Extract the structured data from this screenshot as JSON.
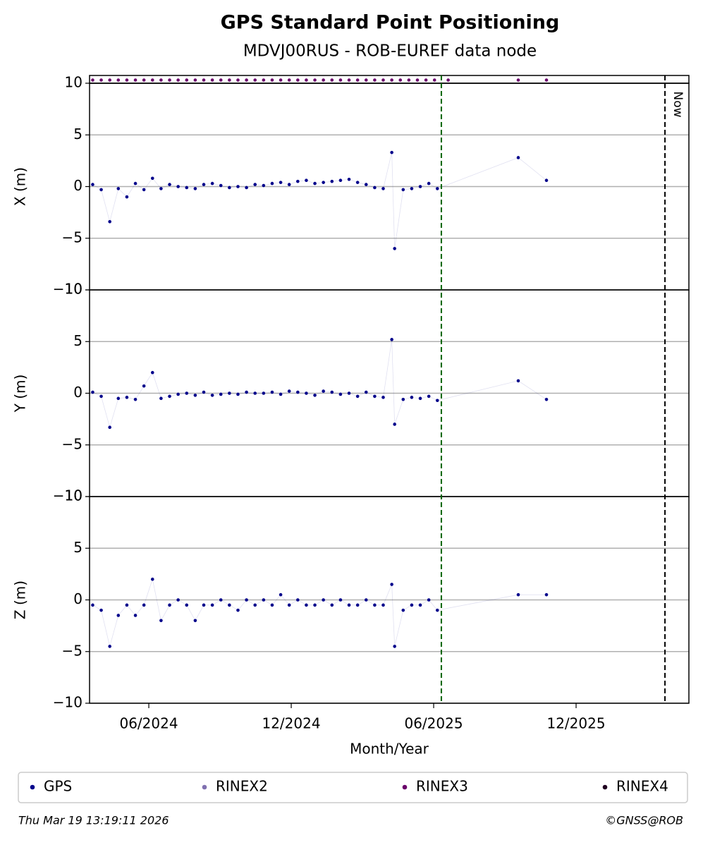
{
  "header": {
    "title": "GPS Standard Point Positioning",
    "subtitle": "MDVJ00RUS - ROB-EUREF data node"
  },
  "footer": {
    "timestamp": "Thu Mar 19 13:19:11 2026",
    "credit": "©GNSS@ROB"
  },
  "chart_data": [
    {
      "type": "scatter",
      "ylabel": "X (m)",
      "x": [
        2024.22,
        2024.25,
        2024.28,
        2024.31,
        2024.34,
        2024.37,
        2024.4,
        2024.43,
        2024.46,
        2024.49,
        2024.52,
        2024.55,
        2024.58,
        2024.61,
        2024.64,
        2024.67,
        2024.7,
        2024.73,
        2024.76,
        2024.79,
        2024.82,
        2024.85,
        2024.88,
        2024.91,
        2024.94,
        2024.97,
        2025.0,
        2025.03,
        2025.06,
        2025.09,
        2025.12,
        2025.15,
        2025.18,
        2025.21,
        2025.24,
        2025.27,
        2025.28,
        2025.31,
        2025.34,
        2025.37,
        2025.4,
        2025.43,
        2025.714,
        2025.813
      ],
      "series": [
        {
          "name": "GPS",
          "color": "#00008b",
          "values": [
            0.2,
            -0.3,
            -3.4,
            -0.2,
            -1.0,
            0.3,
            -0.3,
            0.8,
            -0.2,
            0.2,
            0.0,
            -0.1,
            -0.2,
            0.2,
            0.3,
            0.1,
            -0.1,
            0.0,
            -0.1,
            0.2,
            0.1,
            0.3,
            0.4,
            0.2,
            0.5,
            0.6,
            0.3,
            0.4,
            0.5,
            0.6,
            0.7,
            0.4,
            0.2,
            -0.1,
            -0.2,
            3.3,
            -6.0,
            -0.3,
            -0.2,
            0.0,
            0.3,
            -0.2,
            2.8,
            0.6
          ]
        }
      ],
      "strip_series": [
        {
          "name": "RINEX2",
          "color": "#8070b0",
          "x": []
        },
        {
          "name": "RINEX3",
          "color": "#6a006a",
          "x": [
            2024.22,
            2024.25,
            2024.28,
            2024.31,
            2024.34,
            2024.37,
            2024.4,
            2024.43,
            2024.46,
            2024.49,
            2024.52,
            2024.55,
            2024.58,
            2024.61,
            2024.64,
            2024.67,
            2024.7,
            2024.73,
            2024.76,
            2024.79,
            2024.82,
            2024.85,
            2024.88,
            2024.91,
            2024.94,
            2024.97,
            2025.0,
            2025.03,
            2025.06,
            2025.09,
            2025.12,
            2025.15,
            2025.18,
            2025.21,
            2025.24,
            2025.27,
            2025.3,
            2025.33,
            2025.36,
            2025.39,
            2025.42,
            2025.468,
            2025.714,
            2025.813
          ]
        },
        {
          "name": "RINEX4",
          "color": "#200020",
          "x": []
        }
      ],
      "vlines": [
        {
          "x": 2025.444,
          "color": "#006400"
        },
        {
          "x": 2026.229,
          "color": "#000000",
          "label": "Now"
        }
      ],
      "xlim": [
        2024.209,
        2026.313
      ],
      "ylim": [
        -10,
        10
      ],
      "yticks": [
        {
          "value": -10,
          "label": "−10"
        },
        {
          "value": -5,
          "label": "−5"
        },
        0,
        5,
        10
      ],
      "grid": true
    },
    {
      "type": "scatter",
      "ylabel": "Y (m)",
      "x": [
        2024.22,
        2024.25,
        2024.28,
        2024.31,
        2024.34,
        2024.37,
        2024.4,
        2024.43,
        2024.46,
        2024.49,
        2024.52,
        2024.55,
        2024.58,
        2024.61,
        2024.64,
        2024.67,
        2024.7,
        2024.73,
        2024.76,
        2024.79,
        2024.82,
        2024.85,
        2024.88,
        2024.91,
        2024.94,
        2024.97,
        2025.0,
        2025.03,
        2025.06,
        2025.09,
        2025.12,
        2025.15,
        2025.18,
        2025.21,
        2025.24,
        2025.27,
        2025.28,
        2025.31,
        2025.34,
        2025.37,
        2025.4,
        2025.43,
        2025.714,
        2025.813
      ],
      "series": [
        {
          "name": "GPS",
          "color": "#00008b",
          "values": [
            0.1,
            -0.3,
            -3.3,
            -0.5,
            -0.4,
            -0.6,
            0.7,
            2.0,
            -0.5,
            -0.3,
            -0.1,
            0.0,
            -0.2,
            0.1,
            -0.2,
            -0.1,
            0.0,
            -0.1,
            0.1,
            0.0,
            0.0,
            0.1,
            -0.1,
            0.2,
            0.1,
            0.0,
            -0.2,
            0.2,
            0.1,
            -0.1,
            0.0,
            -0.3,
            0.1,
            -0.3,
            -0.4,
            5.2,
            -3.0,
            -0.6,
            -0.4,
            -0.5,
            -0.3,
            -0.7,
            1.2,
            -0.6
          ]
        }
      ],
      "xlim": [
        2024.209,
        2026.313
      ],
      "ylim": [
        -10,
        10
      ],
      "yticks": [
        {
          "value": -10,
          "label": "−10"
        },
        {
          "value": -5,
          "label": "−5"
        },
        0,
        5,
        10
      ],
      "grid": true
    },
    {
      "type": "scatter",
      "ylabel": "Z (m)",
      "xlabel": "Month/Year",
      "x": [
        2024.22,
        2024.25,
        2024.28,
        2024.31,
        2024.34,
        2024.37,
        2024.4,
        2024.43,
        2024.46,
        2024.49,
        2024.52,
        2024.55,
        2024.58,
        2024.61,
        2024.64,
        2024.67,
        2024.7,
        2024.73,
        2024.76,
        2024.79,
        2024.82,
        2024.85,
        2024.88,
        2024.91,
        2024.94,
        2024.97,
        2025.0,
        2025.03,
        2025.06,
        2025.09,
        2025.12,
        2025.15,
        2025.18,
        2025.21,
        2025.24,
        2025.27,
        2025.28,
        2025.31,
        2025.34,
        2025.37,
        2025.4,
        2025.43,
        2025.714,
        2025.813
      ],
      "series": [
        {
          "name": "GPS",
          "color": "#00008b",
          "values": [
            -0.5,
            -1.0,
            -4.5,
            -1.5,
            -0.5,
            -1.5,
            -0.5,
            2.0,
            -2.0,
            -0.5,
            0.0,
            -0.5,
            -2.0,
            -0.5,
            -0.5,
            0.0,
            -0.5,
            -1.0,
            0.0,
            -0.5,
            0.0,
            -0.5,
            0.5,
            -0.5,
            0.0,
            -0.5,
            -0.5,
            0.0,
            -0.5,
            0.0,
            -0.5,
            -0.5,
            0.0,
            -0.5,
            -0.5,
            1.5,
            -4.5,
            -1.0,
            -0.5,
            -0.5,
            0.0,
            -1.0,
            0.5,
            0.5
          ]
        }
      ],
      "xlim": [
        2024.209,
        2026.313
      ],
      "xticks": [
        {
          "value": 2024.417,
          "label": "06/2024"
        },
        {
          "value": 2024.917,
          "label": "12/2024"
        },
        {
          "value": 2025.417,
          "label": "06/2025"
        },
        {
          "value": 2025.917,
          "label": "12/2025"
        }
      ],
      "ylim": [
        -10,
        10
      ],
      "yticks": [
        {
          "value": -10,
          "label": "−10"
        },
        {
          "value": -5,
          "label": "−5"
        },
        0,
        5,
        10
      ],
      "grid": true
    }
  ]
}
